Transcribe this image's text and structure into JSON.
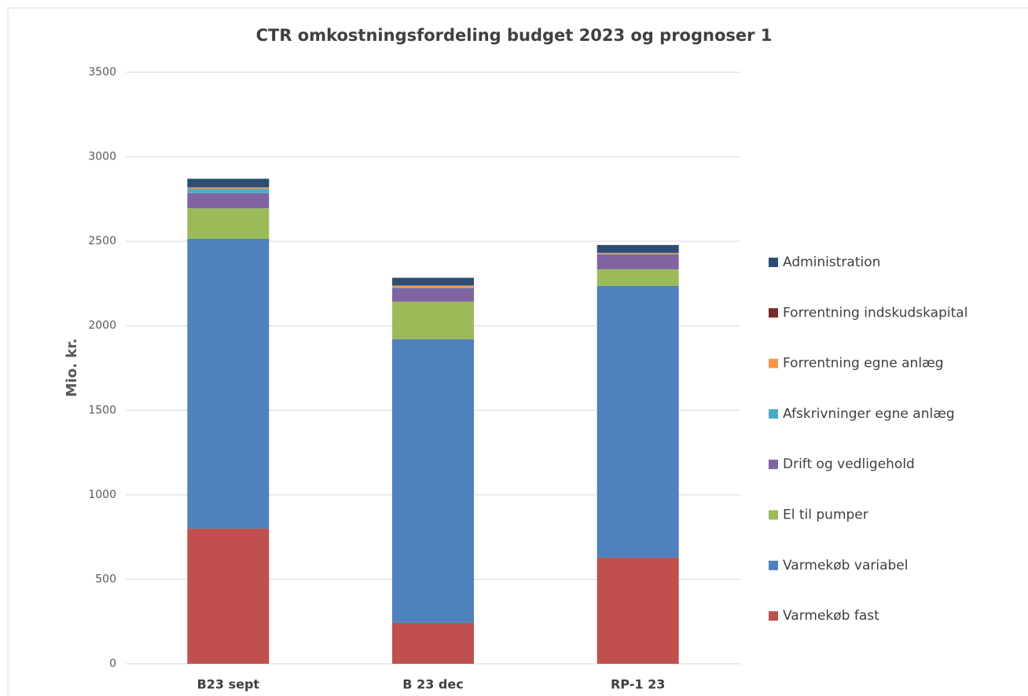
{
  "chart_data": {
    "type": "stacked_bar",
    "title": "CTR omkostningsfordeling budget 2023 og prognoser 1",
    "y_label": "Mio. kr.",
    "categories": [
      "B23 sept",
      "B 23 dec",
      "RP-1 23"
    ],
    "series": [
      {
        "name": "Varmekøb fast",
        "color": "#c0504d",
        "values": [
          800,
          242,
          628
        ]
      },
      {
        "name": "Varmekøb variabel",
        "color": "#4f81bd",
        "values": [
          1715,
          1678,
          1608
        ]
      },
      {
        "name": "El til pumper",
        "color": "#9bbb59",
        "values": [
          180,
          223,
          98
        ]
      },
      {
        "name": "Drift og vedligehold",
        "color": "#8064a2",
        "values": [
          90,
          79,
          88
        ]
      },
      {
        "name": "Afskrivninger egne anlæg",
        "color": "#4bacc6",
        "values": [
          25,
          5,
          3
        ]
      },
      {
        "name": "Forrentning egne anlæg",
        "color": "#f79646",
        "values": [
          8,
          10,
          5
        ]
      },
      {
        "name": "Forrentning indskudskapital",
        "color": "#772c2a",
        "values": [
          2,
          2,
          2
        ]
      },
      {
        "name": "Administration",
        "color": "#2c4d75",
        "values": [
          50,
          45,
          46
        ]
      }
    ],
    "ylim": [
      0,
      3500
    ],
    "yticks": [
      0,
      500,
      1000,
      1500,
      2000,
      2500,
      3000,
      3500
    ],
    "grid": true,
    "legend": "right"
  }
}
